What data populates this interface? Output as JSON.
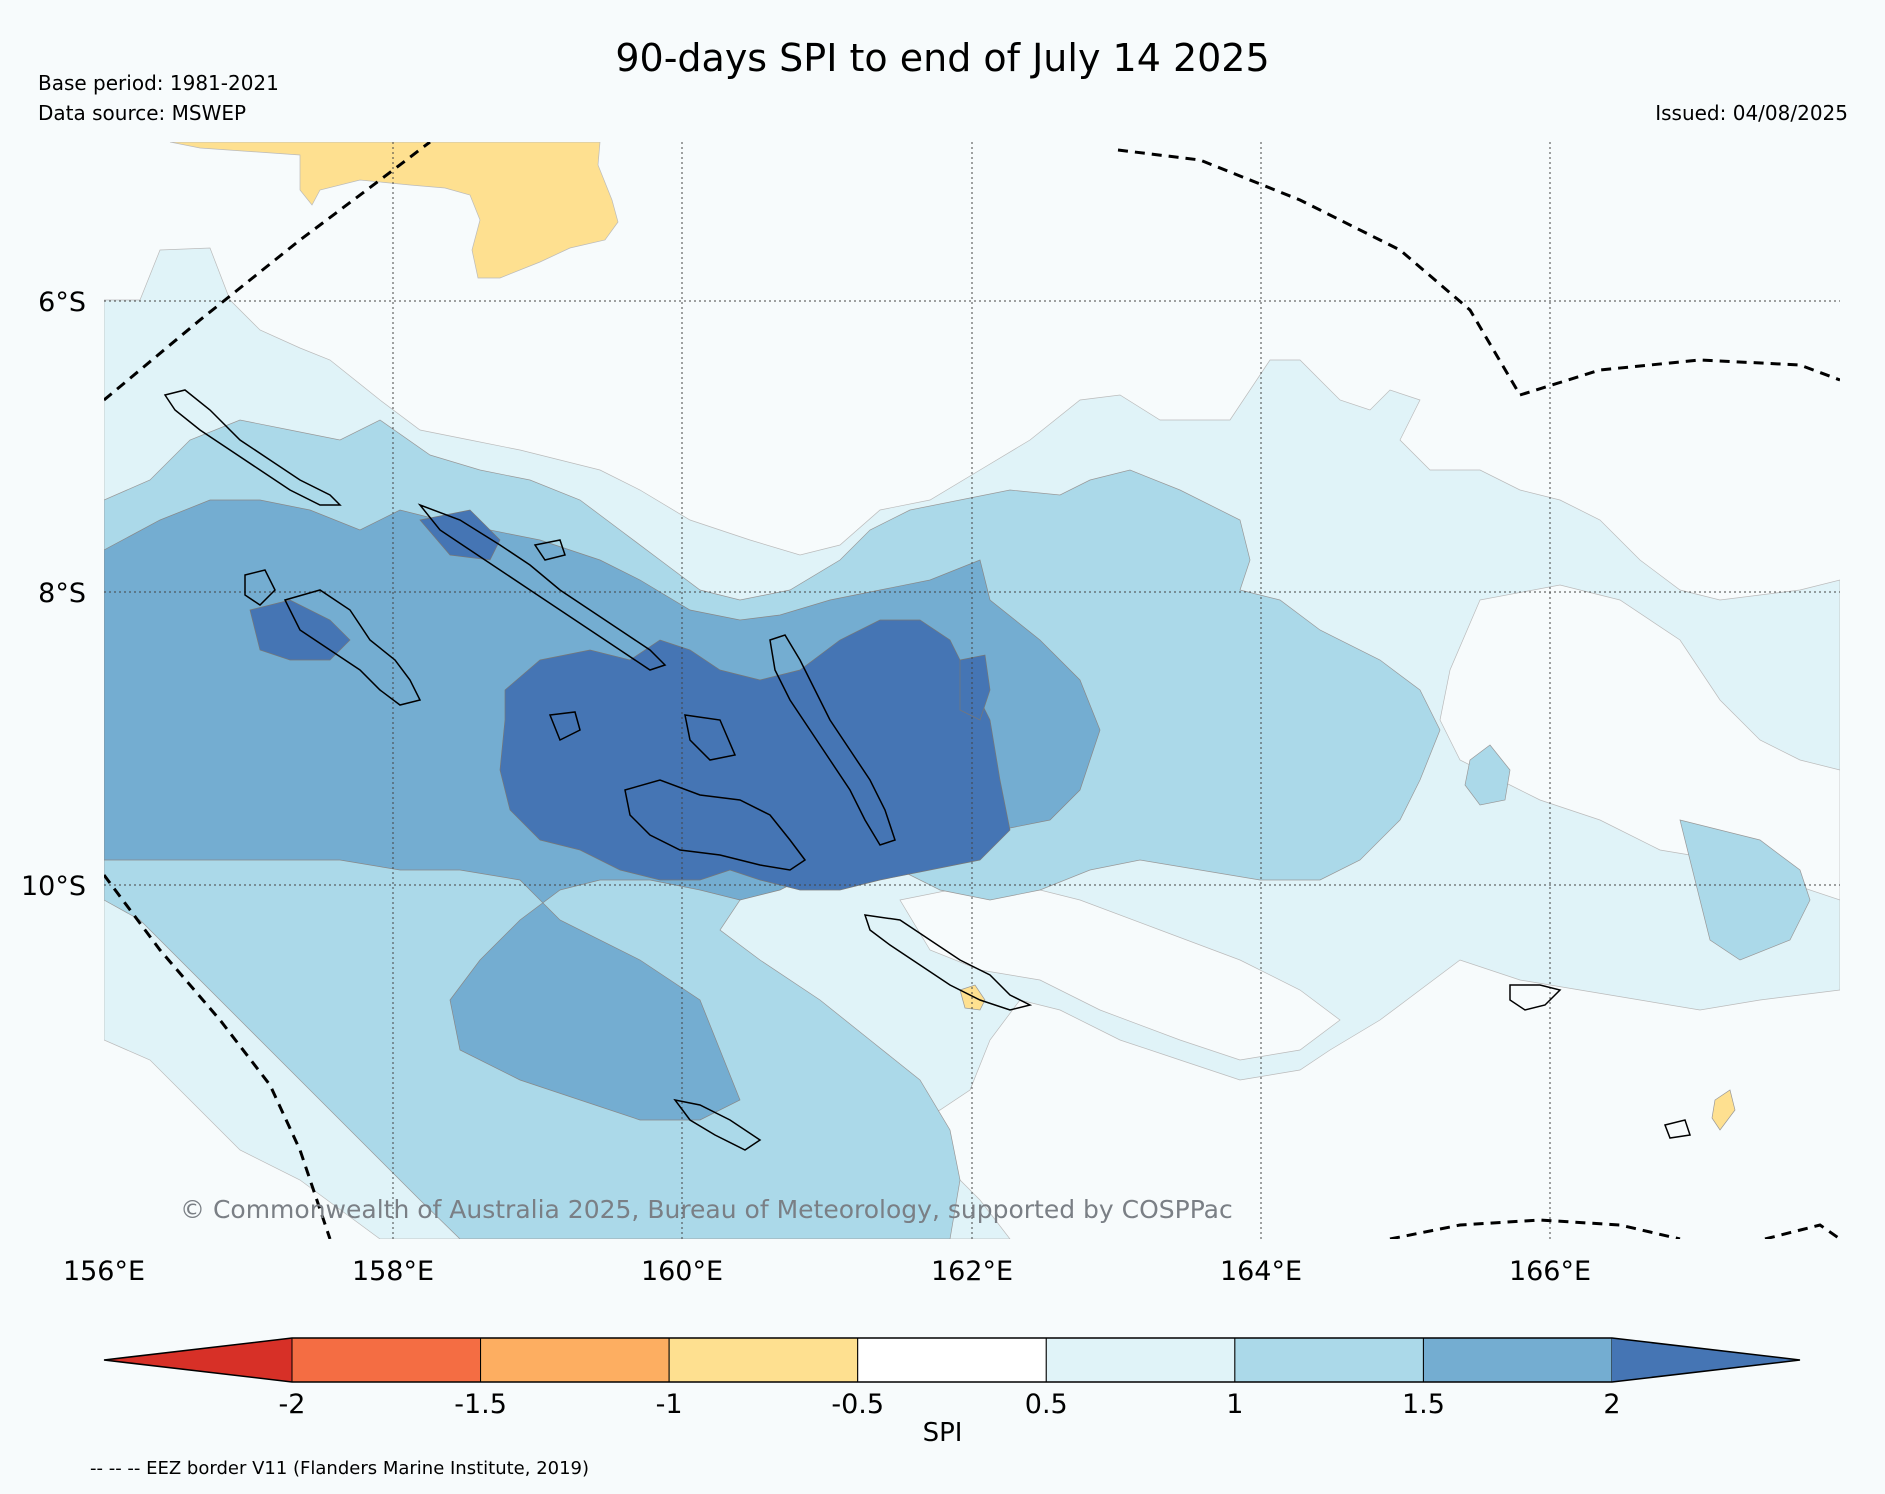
{
  "header": {
    "title": "90-days SPI to end of July 14 2025",
    "base_period": "Base period: 1981-2021",
    "data_source": "Data source: MSWEP",
    "issued": "Issued: 04/08/2025"
  },
  "map": {
    "lat_labels": [
      "6°S",
      "8°S",
      "10°S"
    ],
    "lon_labels": [
      "156°E",
      "158°E",
      "160°E",
      "162°E",
      "164°E",
      "166°E"
    ],
    "copyright": "© Commonwealth of Australia 2025, Bureau of Meteorology, supported by COSPPac",
    "colors": {
      "very_wet": "#4575b4",
      "wet_high": "#74add1",
      "wet_mid": "#abd9e9",
      "wet_low": "#e0f3f8",
      "normal": "#f7fbfc",
      "dry_low": "#fee090",
      "dry_mid": "#fdae61",
      "dry_high": "#f46d43",
      "very_dry": "#d73027"
    }
  },
  "colorbar": {
    "ticks": [
      "-2",
      "-1.5",
      "-1",
      "-0.5",
      "0.5",
      "1",
      "1.5",
      "2"
    ],
    "label": "SPI",
    "bins": [
      "#d73027",
      "#f46d43",
      "#fdae61",
      "#fee090",
      "#ffffff",
      "#e0f3f8",
      "#abd9e9",
      "#74add1",
      "#4575b4"
    ]
  },
  "legend": {
    "eez": "-- -- -- EEZ border V11 (Flanders Marine Institute, 2019)"
  }
}
